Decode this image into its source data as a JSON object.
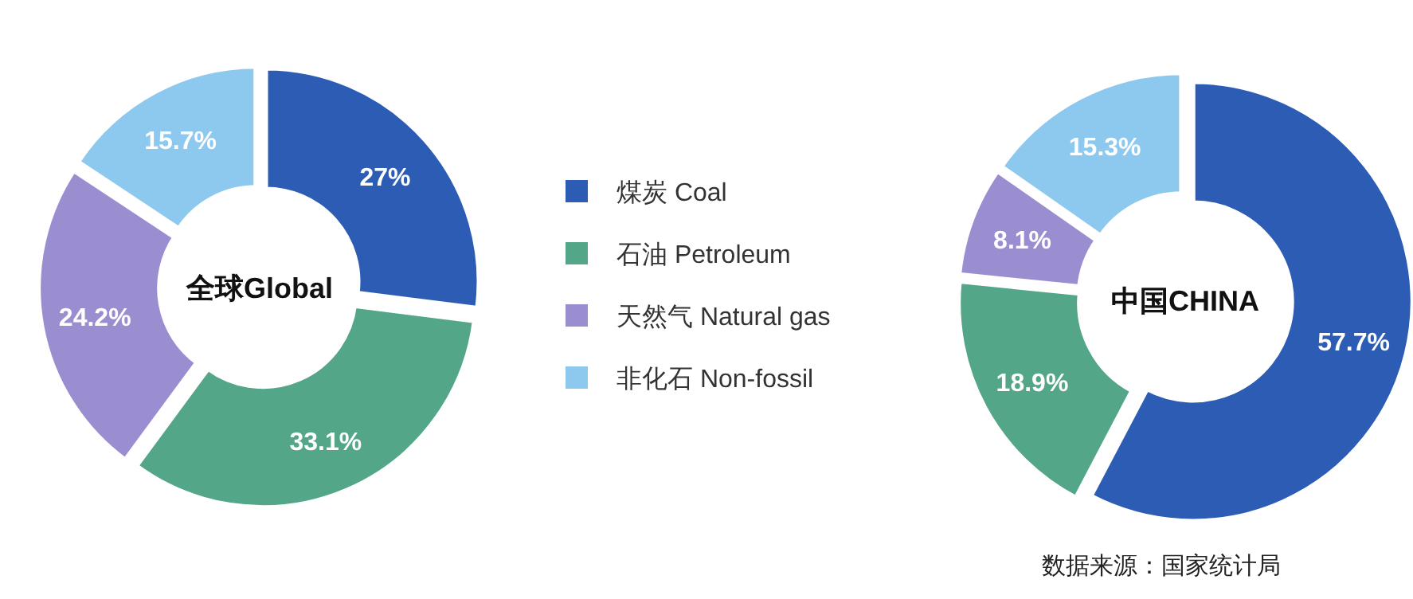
{
  "chart_data": [
    {
      "type": "donut",
      "title": "全球Global",
      "categories": [
        "煤炭 Coal",
        "石油 Petroleum",
        "天然气 Natural gas",
        "非化石 Non-fossil"
      ],
      "values": [
        27,
        33.1,
        24.2,
        15.7
      ],
      "colors": [
        "#2d5cb5",
        "#53a688",
        "#9b8ed0",
        "#8dc8ee"
      ],
      "value_labels": [
        "27%",
        "33.1%",
        "24.2%",
        "15.7%"
      ],
      "legend": "right"
    },
    {
      "type": "donut",
      "title": "中国CHINA",
      "categories": [
        null,
        null,
        null,
        null
      ],
      "values": [
        57.7,
        18.9,
        8.1,
        15.3
      ],
      "colors": [
        "#2d5cb5",
        "#53a688",
        "#9b8ed0",
        "#8dc8ee"
      ],
      "value_labels": [
        "57.7%",
        "18.9%",
        "8.1%",
        "15.3%"
      ],
      "annotations": [
        "数据来源：国家统计局"
      ]
    }
  ]
}
